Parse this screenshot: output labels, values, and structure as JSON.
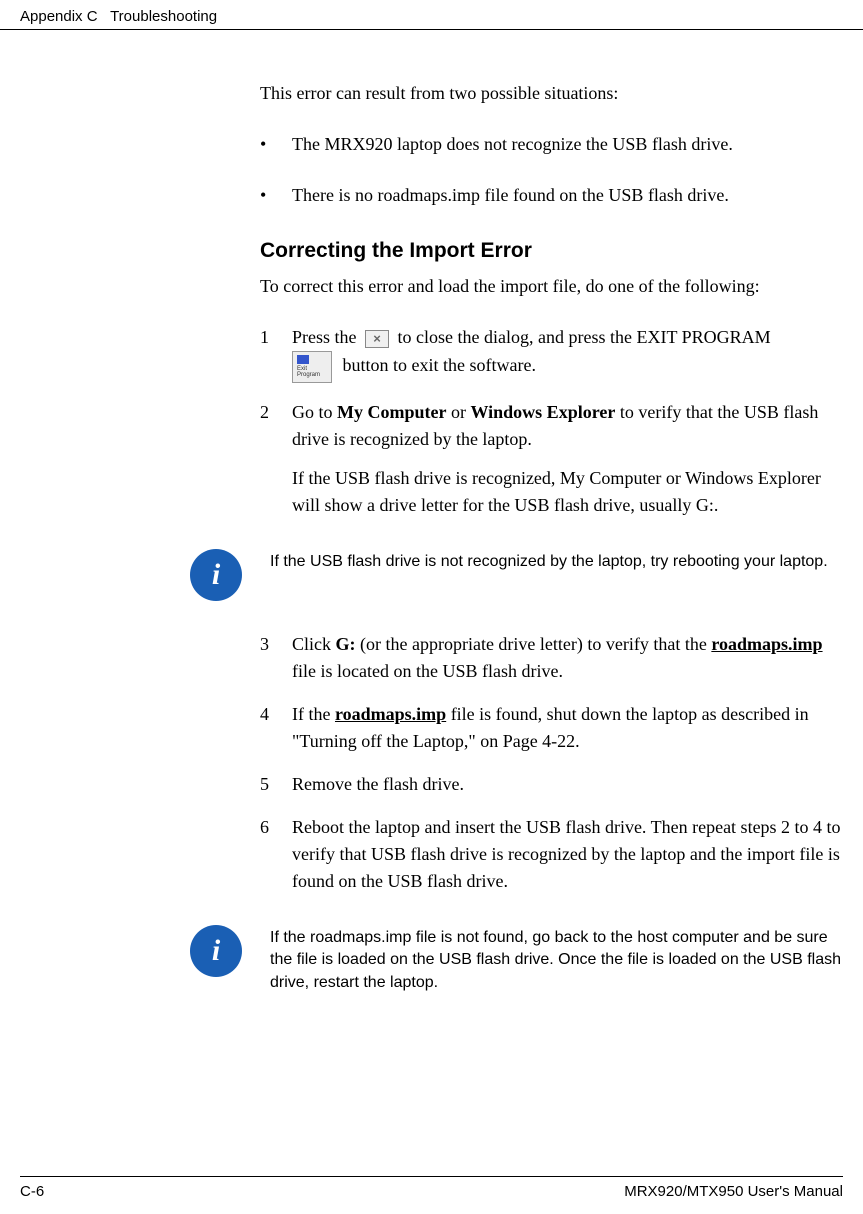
{
  "header": {
    "appendix": "Appendix C",
    "chapter": "Troubleshooting"
  },
  "intro": "This error can result from two possible situations:",
  "bullets": [
    "The MRX920 laptop does not recognize the USB flash drive.",
    "There is no roadmaps.imp file found on the USB flash drive."
  ],
  "section_heading": "Correcting the Import Error",
  "section_intro": "To correct this error and load the import file, do one of the following:",
  "step1_a": "Press the",
  "step1_b": "to close the dialog, and press the",
  "step1_smallcaps": "EXIT PROGRAM",
  "step1_c": "button to exit the software.",
  "step2_a": "Go to ",
  "step2_bold1": "My Computer",
  "step2_mid": " or ",
  "step2_bold2": "Windows Explorer",
  "step2_b": " to verify that the USB flash drive is recognized by the laptop.",
  "step2_cont": "If the USB flash drive is recognized, My Computer or Windows Explorer will show a drive letter for the USB flash drive, usually G:.",
  "info1": "If the USB flash drive is not recognized by the laptop, try rebooting your laptop.",
  "step3_a": "Click ",
  "step3_bold": "G:",
  "step3_b": " (or the appropriate drive letter) to verify that the ",
  "step3_u": "roadmaps.imp",
  "step3_c": " file is located on the USB flash drive.",
  "step4_a": "If the ",
  "step4_u": "roadmaps.imp",
  "step4_b": " file is found, shut down the laptop as described in \"Turning off the Laptop,\" on Page 4-22.",
  "step5": "Remove the flash drive.",
  "step6": "Reboot the laptop and insert the USB flash drive. Then repeat steps 2 to 4 to verify that USB flash drive is recognized by the laptop and the import file is found on the USB flash drive.",
  "info2": "If the roadmaps.imp file is not found, go back to the host computer and be sure the file is loaded on the USB flash drive. Once the file is loaded on the USB flash drive, restart the laptop.",
  "footer": {
    "page": "C-6",
    "manual": "MRX920/MTX950 User's Manual"
  },
  "colors": {
    "info_bg": "#1a5fb4",
    "text": "#000000"
  },
  "fonts": {
    "body": "Georgia, serif",
    "heading": "Arial, sans-serif",
    "body_size_pt": 13,
    "heading_size_pt": 16
  },
  "nums": {
    "n1": "1",
    "n2": "2",
    "n3": "3",
    "n4": "4",
    "n5": "5",
    "n6": "6"
  },
  "close_glyph": "×"
}
